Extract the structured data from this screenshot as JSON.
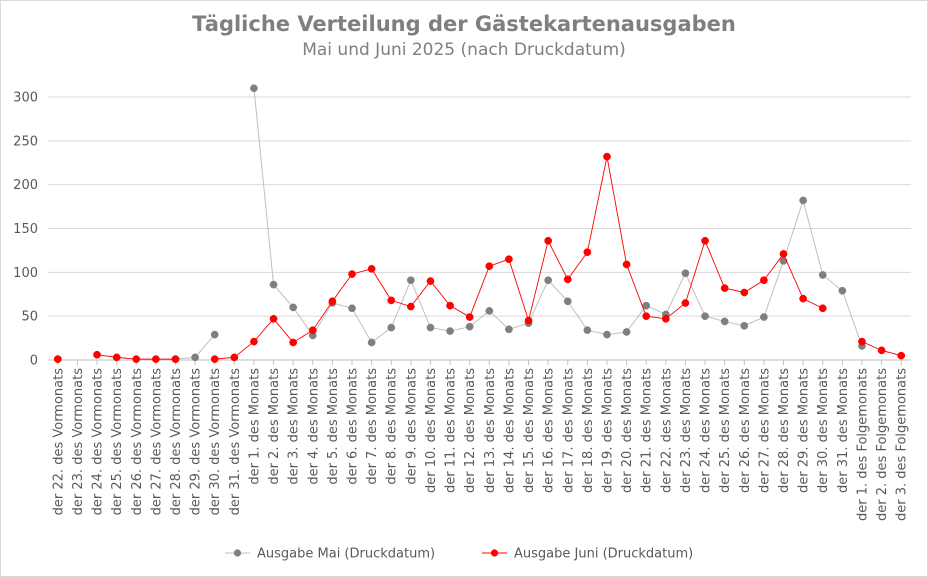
{
  "chart_data": {
    "type": "line",
    "title": "Tägliche Verteilung der Gästekartenausgaben",
    "subtitle": "Mai und Juni 2025 (nach Druckdatum)",
    "xlabel": "",
    "ylabel": "",
    "ylim": [
      0,
      300
    ],
    "yticks": [
      0,
      50,
      100,
      150,
      200,
      250,
      300
    ],
    "grid": true,
    "legend": "bottom",
    "categories": [
      "der 22. des Vormonats",
      "der 23. des Vormonats",
      "der 24. des Vormonats",
      "der 25. des Vormonats",
      "der 26. des Vormonats",
      "der 27. des Vormonats",
      "der 28. des Vormonats",
      "der 29. des Vormonats",
      "der 30. des Vormonats",
      "der 31. des Vormonats",
      "der 1. des Monats",
      "der 2. des Monats",
      "der 3. des Monats",
      "der 4. des Monats",
      "der 5. des Monats",
      "der 6. des Monats",
      "der 7. des Monats",
      "der 8. des Monats",
      "der 9. des Monats",
      "der 10. des Monats",
      "der 11. des Monats",
      "der 12. des Monats",
      "der 13. des Monats",
      "der 14. des Monats",
      "der 15. des Monats",
      "der 16. des Monats",
      "der 17. des Monats",
      "der 18. des Monats",
      "der 19. des Monats",
      "der 20. des Monats",
      "der 21. des Monats",
      "der 22. des Monats",
      "der 23. des Monats",
      "der 24. des Monats",
      "der 25. des Monats",
      "der 26. des Monats",
      "der 27. des Monats",
      "der 28. des Monats",
      "der 29. des Monats",
      "der 30. des Monats",
      "der 31. des Monats",
      "der 1. des Folgemonats",
      "der 2. des Folgemonats",
      "der 3. des Folgemonats"
    ],
    "series": [
      {
        "name": "Ausgabe Mai (Druckdatum)",
        "color": "#7f7f7f",
        "line_color": "#bfbfbf",
        "values": [
          1,
          null,
          null,
          null,
          null,
          null,
          1,
          3,
          29,
          null,
          310,
          86,
          60,
          28,
          65,
          59,
          20,
          37,
          91,
          37,
          33,
          38,
          56,
          35,
          42,
          91,
          67,
          34,
          29,
          32,
          62,
          52,
          99,
          50,
          44,
          39,
          49,
          113,
          182,
          97,
          79,
          16,
          null,
          null
        ]
      },
      {
        "name": "Ausgabe Juni (Druckdatum)",
        "color": "#ff0000",
        "line_color": "#ff0000",
        "values": [
          1,
          null,
          6,
          3,
          1,
          1,
          1,
          null,
          1,
          3,
          21,
          47,
          20,
          34,
          67,
          98,
          104,
          68,
          61,
          90,
          62,
          49,
          107,
          115,
          45,
          136,
          92,
          123,
          232,
          109,
          50,
          47,
          65,
          136,
          82,
          77,
          91,
          121,
          70,
          59,
          null,
          21,
          11,
          5
        ]
      }
    ]
  }
}
